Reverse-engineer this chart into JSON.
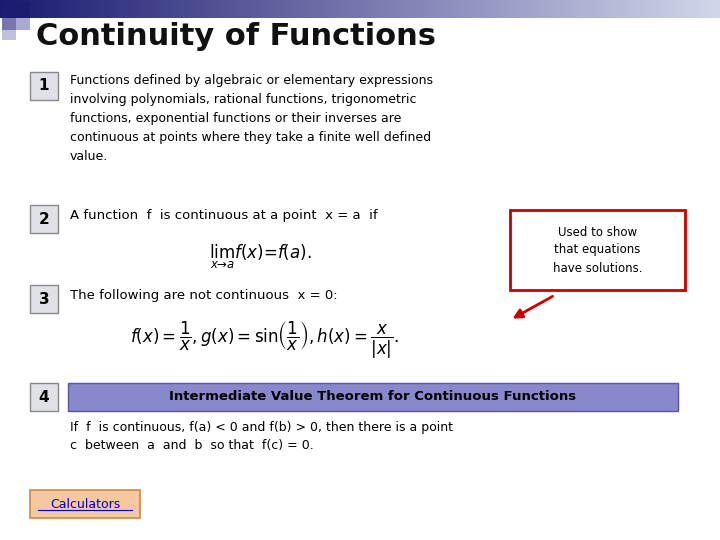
{
  "title": "Continuity of Functions",
  "background_color": "#ffffff",
  "item1_text": "Functions defined by algebraic or elementary expressions\ninvolving polynomials, rational functions, trigonometric\nfunctions, exponential functions or their inverses are\ncontinuous at points where they take a finite well defined\nvalue.",
  "item2_text": "A function  f  is continuous at a point  x = a  if",
  "item2_formula": "$\\lim_{x \\to a} f(x) = f(a).$",
  "item3_text": "The following are not continuous  x = 0:",
  "item3_formula": "$f(x) = \\dfrac{1}{x}, g(x) = \\sin\\!\\left(\\dfrac{1}{x}\\right), h(x) = \\dfrac{x}{|x|}.$",
  "item4_banner_text": "Intermediate Value Theorem for Continuous Functions",
  "item4_banner_color": "#8888cc",
  "item4_banner_border": "#5555aa",
  "item4_sub_line1": "If  f  is continuous, f(a) < 0 and f(b) > 0, then there is a point",
  "item4_sub_line2": "c  between  a  and  b  so that  f(c) = 0.",
  "callout_text": "Used to show\nthat equations\nhave solutions.",
  "callout_border": "#cc0000",
  "calculators_text": "Calculators",
  "calculators_box_color": "#f5c8a0",
  "calculators_border": "#cc8844",
  "num_box_face": "#e0e0e8",
  "num_box_edge": "#888888"
}
